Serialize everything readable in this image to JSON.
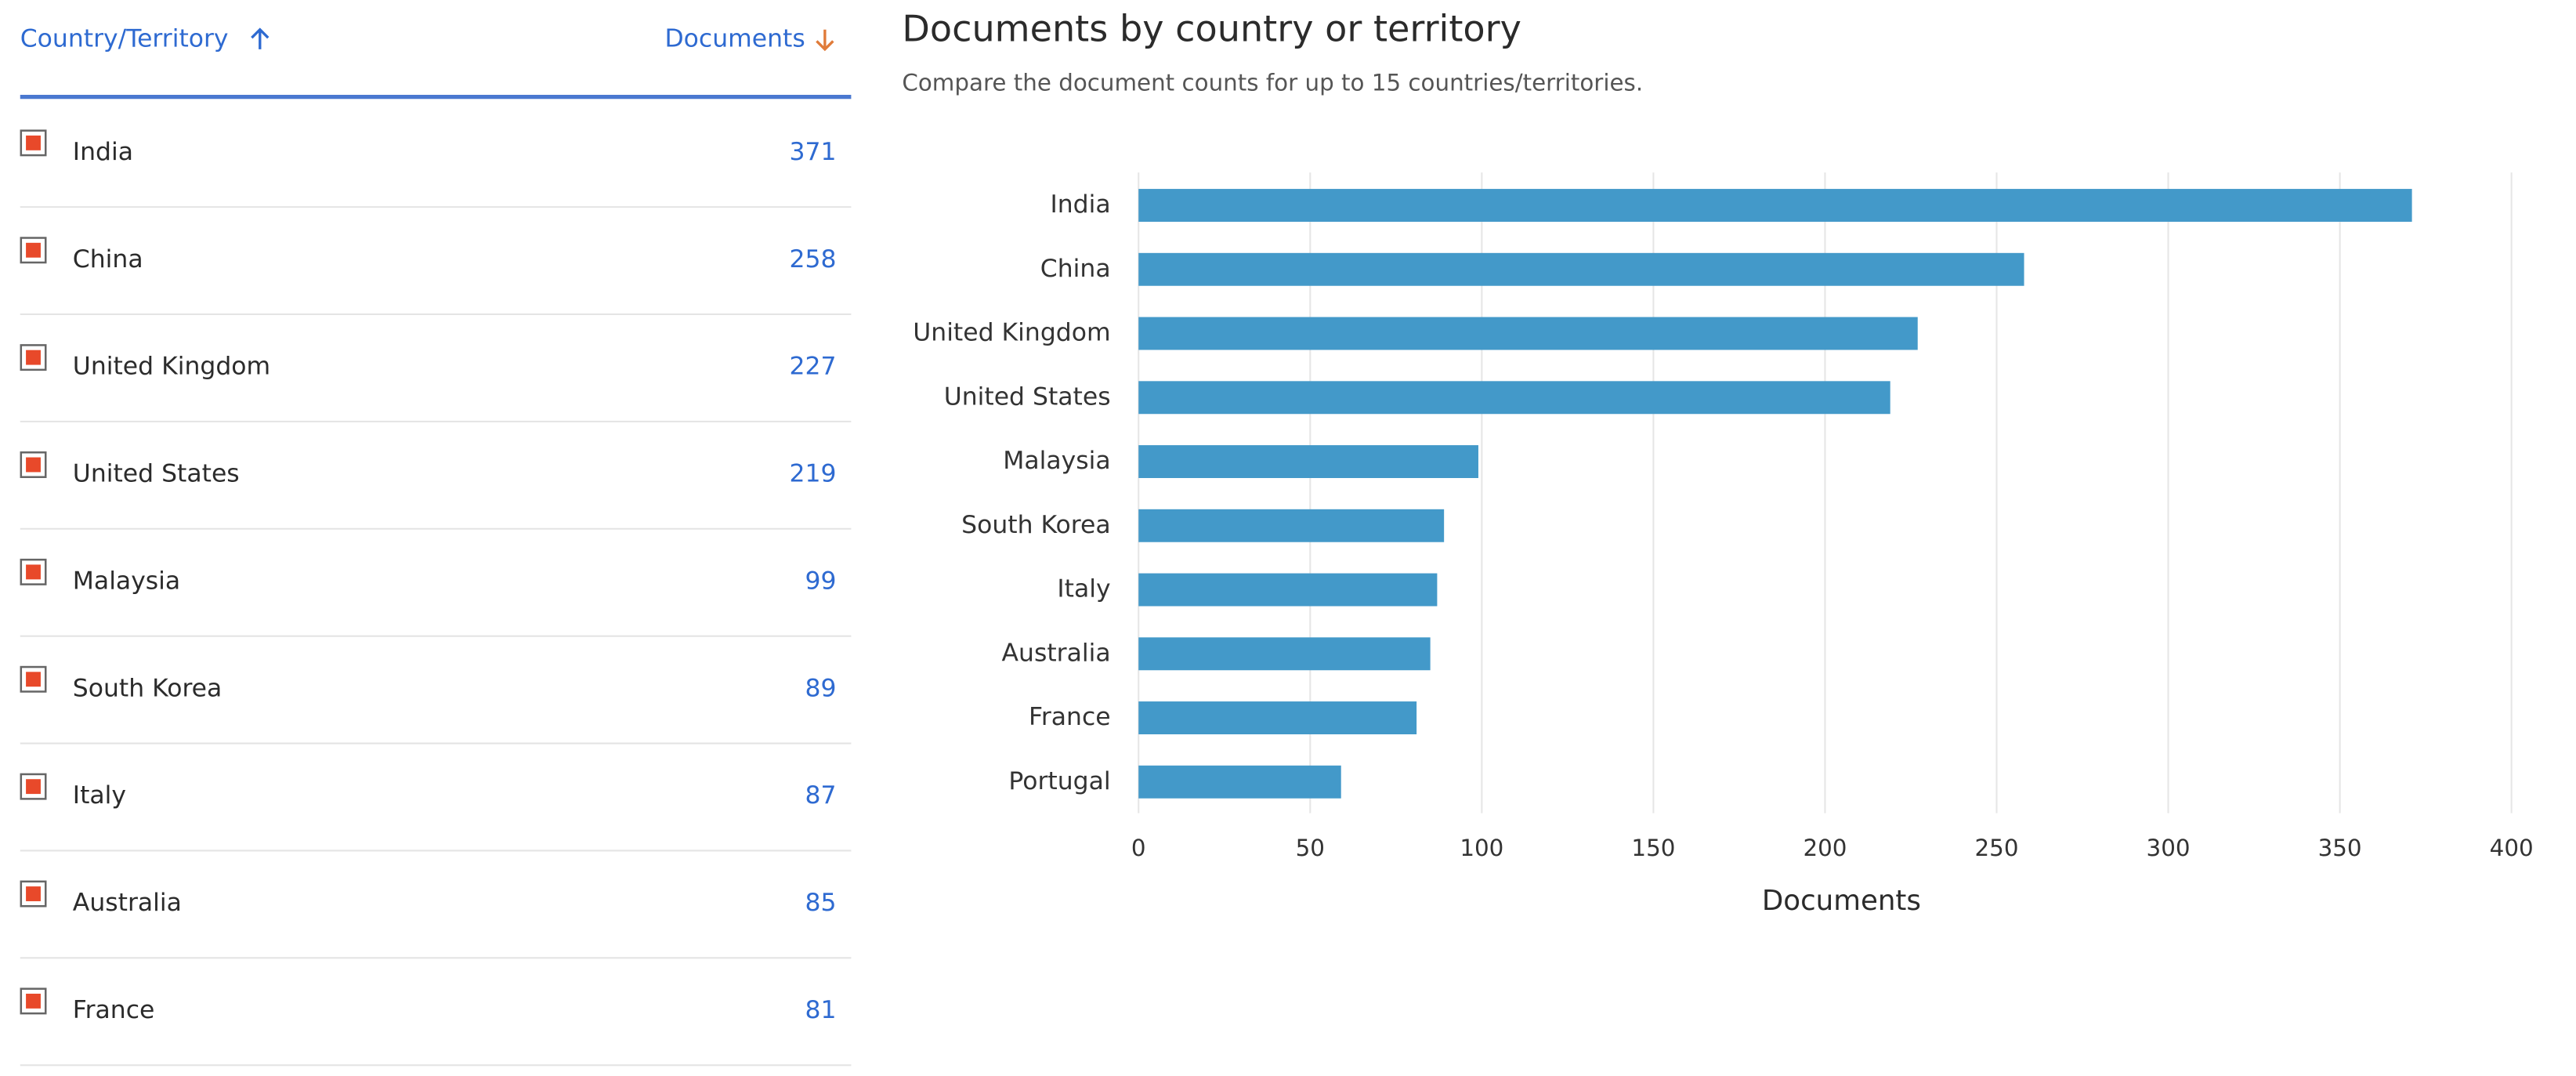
{
  "table": {
    "headers": [
      "Country/Territory",
      "Documents"
    ],
    "rows": [
      [
        "India",
        "371"
      ],
      [
        "China",
        "258"
      ],
      [
        "United Kingdom",
        "227"
      ],
      [
        "United States",
        "219"
      ],
      [
        "Malaysia",
        "99"
      ],
      [
        "South Korea",
        "89"
      ],
      [
        "Italy",
        "87"
      ],
      [
        "Australia",
        "85"
      ],
      [
        "France",
        "81"
      ]
    ]
  },
  "chart_data": {
    "type": "hbar",
    "title": "Documents by country or territory",
    "subtitle": "Compare the document counts for up to 15 countries/territories.",
    "categories": [
      "India",
      "China",
      "United Kingdom",
      "United States",
      "Malaysia",
      "South Korea",
      "Italy",
      "Australia",
      "France",
      "Portugal"
    ],
    "values": [
      371,
      258,
      227,
      219,
      99,
      89,
      87,
      85,
      81,
      59
    ],
    "color": "#4399c9",
    "xlabel": "Documents",
    "xlim": [
      0,
      400
    ],
    "xticks": [
      0,
      50,
      100,
      150,
      200,
      250,
      300,
      350,
      400
    ],
    "grid": true
  }
}
